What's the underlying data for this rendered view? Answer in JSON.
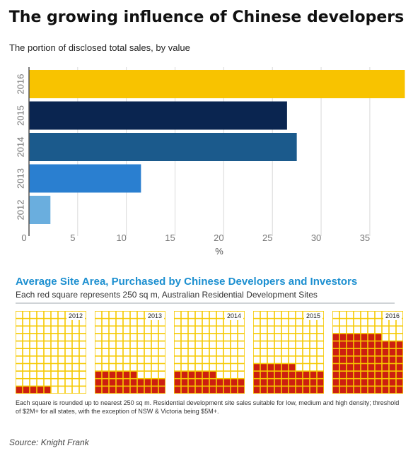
{
  "title": "The growing influence of Chinese developers",
  "subtitle": "The portion of disclosed total sales, by value",
  "chart_data": {
    "type": "bar",
    "orientation": "horizontal",
    "categories": [
      "2016",
      "2015",
      "2014",
      "2013",
      "2012"
    ],
    "values": [
      38.6,
      26.5,
      27.5,
      11.5,
      2.2
    ],
    "colors": [
      "#f8c300",
      "#0a2550",
      "#1b5a8c",
      "#2a7fd0",
      "#6aaede"
    ],
    "xlabel": "%",
    "xlim": [
      0,
      39
    ],
    "xticks": [
      0,
      5,
      10,
      15,
      20,
      25,
      30,
      35
    ],
    "grid": true
  },
  "infographic": {
    "title": "Average Site Area, Purchased by Chinese Developers and Investors",
    "subtitle": "Each red square represents 250 sq m, Australian Residential Development Sites",
    "red_color": "#cc1f10",
    "cell_color": "#f6c900",
    "columns_per_grid": 10,
    "rows_per_grid": 11,
    "grids": [
      {
        "year": "2012",
        "red_squares": 5
      },
      {
        "year": "2013",
        "red_squares": 26
      },
      {
        "year": "2014",
        "red_squares": 26
      },
      {
        "year": "2015",
        "red_squares": 36
      },
      {
        "year": "2016",
        "red_squares": 77
      }
    ],
    "footnote": "Each square is rounded up to nearest 250 sq m. Residential development site sales suitable for low, medium and high density; threshold of $2M+ for all states, with the exception of NSW & Victoria being $5M+."
  },
  "source": "Source: Knight Frank"
}
